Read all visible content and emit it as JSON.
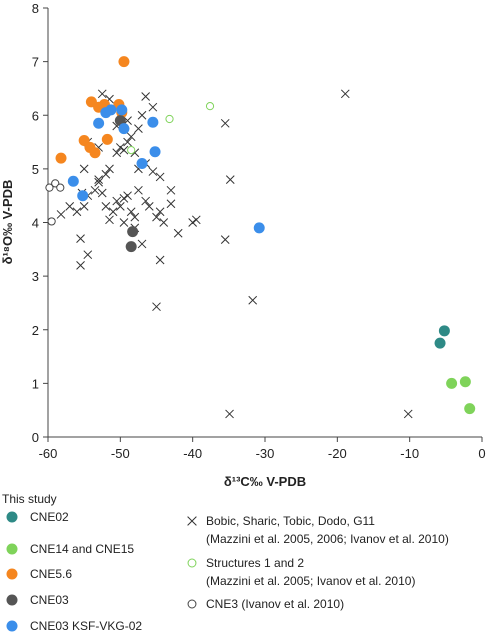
{
  "chart_data": {
    "type": "scatter",
    "xlabel": "δ¹³C‰ V-PDB",
    "ylabel": "δ¹⁸O‰ V-PDB",
    "xlim": [
      -60,
      0
    ],
    "ylim": [
      0,
      8
    ],
    "xticks": [
      -60,
      -50,
      -40,
      -30,
      -20,
      -10,
      0
    ],
    "yticks": [
      0,
      1,
      2,
      3,
      4,
      5,
      6,
      7,
      8
    ],
    "grid": false,
    "legend_heading": "This study",
    "series": [
      {
        "name": "CNE02",
        "marker": "filled-circle",
        "color": "#2e8a86",
        "points": [
          [
            -5.8,
            1.75
          ],
          [
            -5.2,
            1.98
          ]
        ]
      },
      {
        "name": "CNE14 and CNE15",
        "marker": "filled-circle",
        "color": "#7fd35a",
        "points": [
          [
            -4.2,
            1.0
          ],
          [
            -2.3,
            1.03
          ],
          [
            -1.7,
            0.53
          ]
        ]
      },
      {
        "name": "CNE5.6",
        "marker": "filled-circle",
        "color": "#f5861f",
        "points": [
          [
            -49.5,
            7.0
          ],
          [
            -58.2,
            5.2
          ],
          [
            -55.0,
            5.53
          ],
          [
            -54.2,
            5.4
          ],
          [
            -53.5,
            5.3
          ],
          [
            -51.8,
            5.55
          ],
          [
            -54.0,
            6.25
          ],
          [
            -53.0,
            6.15
          ],
          [
            -52.2,
            6.2
          ],
          [
            -50.2,
            6.2
          ],
          [
            -49.8,
            6.05
          ]
        ]
      },
      {
        "name": "CNE03",
        "marker": "filled-circle",
        "color": "#555555",
        "points": [
          [
            -50.0,
            5.9
          ],
          [
            -48.3,
            3.83
          ],
          [
            -48.5,
            3.55
          ]
        ]
      },
      {
        "name": "CNE03 KSF-VKG-02",
        "marker": "filled-circle",
        "color": "#3b8eea",
        "points": [
          [
            -56.5,
            4.77
          ],
          [
            -55.2,
            4.5
          ],
          [
            -53.0,
            5.85
          ],
          [
            -52.0,
            6.05
          ],
          [
            -51.3,
            6.1
          ],
          [
            -49.8,
            6.1
          ],
          [
            -49.5,
            5.75
          ],
          [
            -47.0,
            5.1
          ],
          [
            -45.5,
            5.87
          ],
          [
            -45.2,
            5.32
          ],
          [
            -30.8,
            3.9
          ]
        ]
      },
      {
        "name": "Bobic, Sharic, Tobic, Dodo, G11\n(Mazzini et al. 2005, 2006; Ivanov et al. 2010)",
        "marker": "x",
        "color": "#333333",
        "points": [
          [
            -58.2,
            4.15
          ],
          [
            -57.0,
            4.3
          ],
          [
            -56.0,
            4.2
          ],
          [
            -55.3,
            4.55
          ],
          [
            -55.0,
            4.3
          ],
          [
            -54.5,
            4.5
          ],
          [
            -53.5,
            4.6
          ],
          [
            -53.0,
            4.8
          ],
          [
            -52.5,
            4.55
          ],
          [
            -52.0,
            4.3
          ],
          [
            -51.5,
            4.05
          ],
          [
            -51.0,
            4.2
          ],
          [
            -50.5,
            4.4
          ],
          [
            -50.0,
            4.3
          ],
          [
            -49.5,
            4.45
          ],
          [
            -49.0,
            4.5
          ],
          [
            -48.5,
            4.2
          ],
          [
            -48.0,
            4.1
          ],
          [
            -47.5,
            4.6
          ],
          [
            -46.5,
            4.4
          ],
          [
            -46.0,
            4.3
          ],
          [
            -45.0,
            4.1
          ],
          [
            -44.5,
            4.2
          ],
          [
            -44.0,
            4.0
          ],
          [
            -43.0,
            4.6
          ],
          [
            -43.0,
            4.35
          ],
          [
            -53.0,
            4.75
          ],
          [
            -52.0,
            4.9
          ],
          [
            -51.5,
            5.0
          ],
          [
            -50.5,
            5.3
          ],
          [
            -50.0,
            5.4
          ],
          [
            -49.5,
            5.35
          ],
          [
            -49.0,
            5.5
          ],
          [
            -48.5,
            5.6
          ],
          [
            -48.0,
            5.3
          ],
          [
            -47.5,
            5.0
          ],
          [
            -46.5,
            5.1
          ],
          [
            -45.5,
            4.95
          ],
          [
            -44.5,
            4.85
          ],
          [
            -55.0,
            5.0
          ],
          [
            -54.5,
            5.5
          ],
          [
            -53.0,
            5.4
          ],
          [
            -52.5,
            6.4
          ],
          [
            -51.5,
            6.3
          ],
          [
            -50.5,
            5.8
          ],
          [
            -49.0,
            5.9
          ],
          [
            -47.5,
            5.75
          ],
          [
            -47.0,
            6.0
          ],
          [
            -46.5,
            6.35
          ],
          [
            -45.5,
            6.15
          ],
          [
            -49.5,
            4.0
          ],
          [
            -48.0,
            3.9
          ],
          [
            -47.0,
            3.6
          ],
          [
            -44.5,
            3.3
          ],
          [
            -42.0,
            3.8
          ],
          [
            -40.0,
            4.0
          ],
          [
            -39.5,
            4.05
          ],
          [
            -35.5,
            3.68
          ],
          [
            -34.8,
            4.8
          ],
          [
            -35.5,
            5.85
          ],
          [
            -55.5,
            3.7
          ],
          [
            -55.5,
            3.2
          ],
          [
            -54.5,
            3.4
          ],
          [
            -45.0,
            2.43
          ],
          [
            -31.7,
            2.55
          ],
          [
            -18.9,
            6.4
          ],
          [
            -34.9,
            0.43
          ],
          [
            -10.2,
            0.43
          ]
        ]
      },
      {
        "name": "Structures 1 and 2\n(Mazzini et al. 2005; Ivanov et al. 2010)",
        "marker": "open-circle",
        "color": "#7fd35a",
        "points": [
          [
            -37.6,
            6.17
          ],
          [
            -43.2,
            5.93
          ],
          [
            -48.5,
            5.35
          ]
        ]
      },
      {
        "name": "CNE3 (Ivanov et al. 2010)",
        "marker": "open-circle",
        "color": "#444444",
        "points": [
          [
            -59.8,
            4.65
          ],
          [
            -59.0,
            4.73
          ],
          [
            -58.3,
            4.65
          ],
          [
            -59.5,
            4.02
          ]
        ]
      }
    ]
  }
}
